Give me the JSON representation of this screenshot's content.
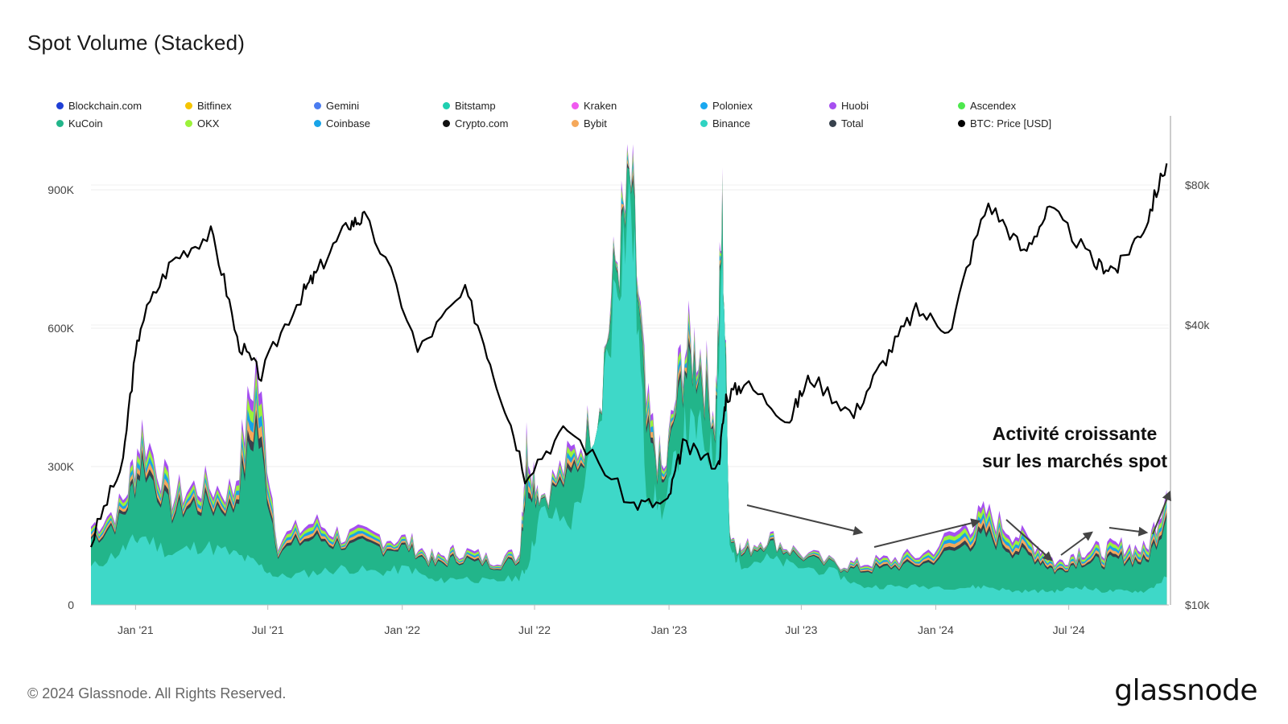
{
  "title": "Spot Volume (Stacked)",
  "footer": {
    "copyright": "© 2024 Glassnode. All Rights Reserved.",
    "logo": "glassnode"
  },
  "annotation": {
    "line1": "Activité croissante",
    "line2": "sur les marchés spot"
  },
  "legend": [
    {
      "label": "Blockchain.com",
      "color": "#1f3fd6"
    },
    {
      "label": "Bitfinex",
      "color": "#f5c400"
    },
    {
      "label": "Gemini",
      "color": "#4a7cf0"
    },
    {
      "label": "Bitstamp",
      "color": "#1fcfb0"
    },
    {
      "label": "Kraken",
      "color": "#f05af0"
    },
    {
      "label": "Poloniex",
      "color": "#1aa8f0"
    },
    {
      "label": "Huobi",
      "color": "#a64ff0"
    },
    {
      "label": "Ascendex",
      "color": "#4de84d"
    },
    {
      "label": "KuCoin",
      "color": "#22b58a"
    },
    {
      "label": "OKX",
      "color": "#9cf23a"
    },
    {
      "label": "Coinbase",
      "color": "#18a4e8"
    },
    {
      "label": "Crypto.com",
      "color": "#111111"
    },
    {
      "label": "Bybit",
      "color": "#f5a85a"
    },
    {
      "label": "Binance",
      "color": "#2fd3c2"
    },
    {
      "label": "Total",
      "color": "#37414d"
    },
    {
      "label": "BTC: Price [USD]",
      "color": "#000000"
    }
  ],
  "chart_data": {
    "type": "area",
    "title": "Spot Volume (Stacked)",
    "x_ticks": [
      "Jan '21",
      "Jul '21",
      "Jan '22",
      "Jul '22",
      "Jan '23",
      "Jul '23",
      "Jan '24",
      "Jul '24"
    ],
    "x_range": [
      "2020-11-01",
      "2024-11-15"
    ],
    "y_left": {
      "ticks": [
        "0",
        "300K",
        "600K",
        "900K"
      ],
      "range": [
        0,
        1050000
      ]
    },
    "y_right": {
      "ticks": [
        "$10k",
        "$40k",
        "$80k"
      ],
      "scale": "log",
      "range": [
        10000,
        110000
      ]
    },
    "series_volume": {
      "dates": [
        "2020-11-01",
        "2020-12-15",
        "2021-01-10",
        "2021-02-20",
        "2021-04-01",
        "2021-05-15",
        "2021-06-15",
        "2021-07-15",
        "2021-09-01",
        "2021-10-15",
        "2021-12-01",
        "2022-01-10",
        "2022-02-15",
        "2022-03-20",
        "2022-05-01",
        "2022-06-10",
        "2022-06-20",
        "2022-07-10",
        "2022-08-20",
        "2022-09-25",
        "2022-10-20",
        "2022-11-10",
        "2022-12-01",
        "2022-12-25",
        "2023-01-20",
        "2023-02-10",
        "2023-03-05",
        "2023-03-15",
        "2023-03-25",
        "2023-04-10",
        "2023-05-15",
        "2023-06-20",
        "2023-08-15",
        "2023-09-20",
        "2023-11-01",
        "2023-12-15",
        "2024-02-10",
        "2024-03-10",
        "2024-04-15",
        "2024-05-20",
        "2024-06-15",
        "2024-07-15",
        "2024-08-15",
        "2024-09-15",
        "2024-10-15",
        "2024-11-12"
      ],
      "binance": [
        80000,
        120000,
        150000,
        110000,
        130000,
        110000,
        90000,
        60000,
        70000,
        80000,
        70000,
        80000,
        50000,
        60000,
        50000,
        60000,
        80000,
        200000,
        180000,
        350000,
        700000,
        880000,
        260000,
        200000,
        380000,
        380000,
        320000,
        780000,
        120000,
        90000,
        100000,
        85000,
        70000,
        40000,
        40000,
        40000,
        38000,
        40000,
        30000,
        30000,
        30000,
        40000,
        30000,
        30000,
        30000,
        60000
      ],
      "total": [
        170000,
        220000,
        380000,
        240000,
        260000,
        250000,
        520000,
        140000,
        180000,
        150000,
        150000,
        140000,
        100000,
        120000,
        100000,
        110000,
        360000,
        240000,
        320000,
        420000,
        740000,
        920000,
        430000,
        280000,
        560000,
        570000,
        420000,
        850000,
        160000,
        120000,
        150000,
        120000,
        90000,
        90000,
        100000,
        110000,
        170000,
        200000,
        160000,
        130000,
        90000,
        120000,
        120000,
        130000,
        120000,
        250000
      ]
    },
    "series_price": {
      "dates": [
        "2020-11-01",
        "2020-12-15",
        "2021-01-08",
        "2021-02-20",
        "2021-04-14",
        "2021-05-20",
        "2021-06-22",
        "2021-08-15",
        "2021-09-07",
        "2021-10-20",
        "2021-11-10",
        "2022-01-22",
        "2022-03-28",
        "2022-05-10",
        "2022-06-18",
        "2022-08-15",
        "2022-11-09",
        "2022-12-30",
        "2023-01-20",
        "2023-03-10",
        "2023-03-20",
        "2023-04-14",
        "2023-06-15",
        "2023-07-13",
        "2023-09-11",
        "2023-10-25",
        "2023-12-05",
        "2024-01-23",
        "2024-03-13",
        "2024-05-01",
        "2024-06-05",
        "2024-08-05",
        "2024-09-06",
        "2024-10-15",
        "2024-11-12"
      ],
      "usd": [
        13500,
        20000,
        40000,
        55000,
        63000,
        37000,
        31000,
        46000,
        52000,
        66000,
        68000,
        35000,
        47000,
        30000,
        19000,
        24000,
        16500,
        16500,
        22000,
        20000,
        28000,
        30000,
        25000,
        31000,
        25500,
        34000,
        43000,
        39000,
        73000,
        57000,
        71000,
        54000,
        53000,
        66000,
        89000
      ]
    }
  }
}
